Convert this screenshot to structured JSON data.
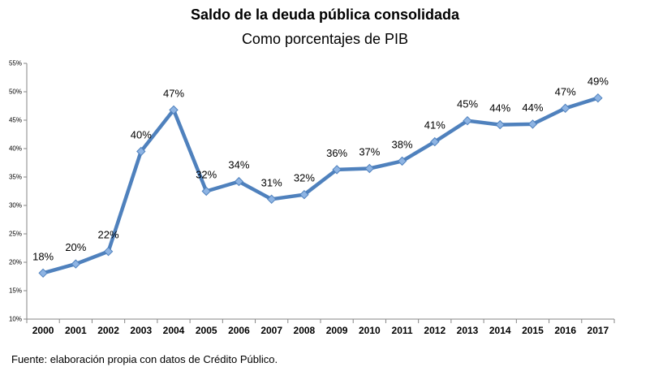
{
  "chart_data": {
    "type": "line",
    "title": "Saldo de la deuda pública consolidada",
    "subtitle": "Como porcentajes de PIB",
    "source": "Fuente: elaboración propia con datos de Crédito Público.",
    "categories": [
      "2000",
      "2001",
      "2002",
      "2003",
      "2004",
      "2005",
      "2006",
      "2007",
      "2008",
      "2009",
      "2010",
      "2011",
      "2012",
      "2013",
      "2014",
      "2015",
      "2016",
      "2017"
    ],
    "series": [
      {
        "values": [
          18.1,
          19.7,
          21.9,
          39.5,
          46.8,
          32.5,
          34.2,
          31.1,
          31.9,
          36.3,
          36.5,
          37.8,
          41.2,
          44.9,
          44.2,
          44.3,
          47.1,
          48.9
        ],
        "labels": [
          "18%",
          "20%",
          "22%",
          "40%",
          "47%",
          "32%",
          "34%",
          "31%",
          "32%",
          "36%",
          "37%",
          "38%",
          "41%",
          "45%",
          "44%",
          "44%",
          "47%",
          "49%"
        ]
      }
    ],
    "y_ticks": [
      "10%",
      "15%",
      "20%",
      "25%",
      "30%",
      "35%",
      "40%",
      "45%",
      "50%",
      "55%"
    ],
    "ylim": [
      10,
      55
    ],
    "grid": false,
    "legend": "none",
    "colors": {
      "line": "#4F81BD",
      "marker_fill": "#8EB4E3",
      "marker_stroke": "#4F81BD",
      "axis": "#868686"
    }
  }
}
